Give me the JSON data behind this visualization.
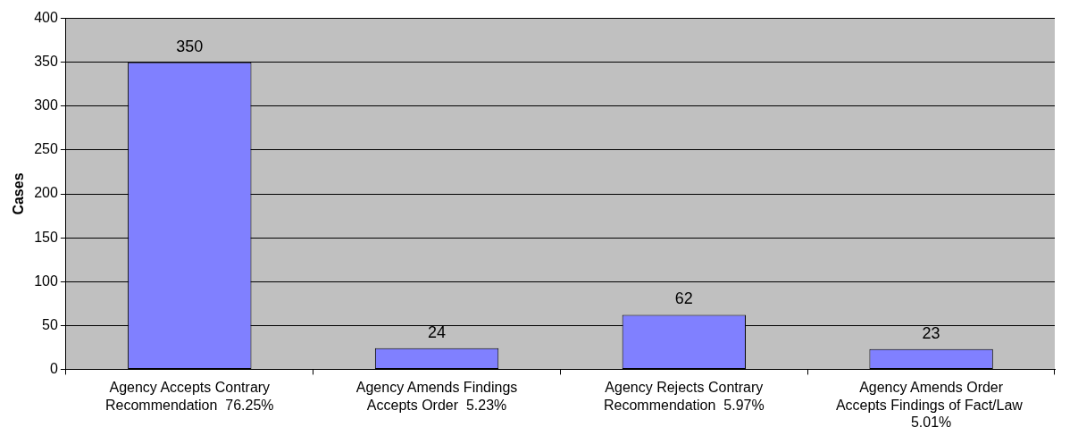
{
  "chart_data": {
    "type": "bar",
    "ylabel": "Cases",
    "categories": [
      "Agency Accepts Contrary Recommendation  76.25%",
      "Agency Amends Findings Accepts Order  5.23%",
      "Agency Rejects Contrary Recommendation  5.97%",
      "Agency Amends Order Accepts Findings of Fact/Law  5.01%"
    ],
    "values": [
      350,
      24,
      62,
      23
    ],
    "color": "#8080ff",
    "ylim": [
      0,
      400
    ],
    "yticks": [
      0,
      50,
      100,
      150,
      200,
      250,
      300,
      350,
      400
    ],
    "grid": "y",
    "data_labels": true
  }
}
